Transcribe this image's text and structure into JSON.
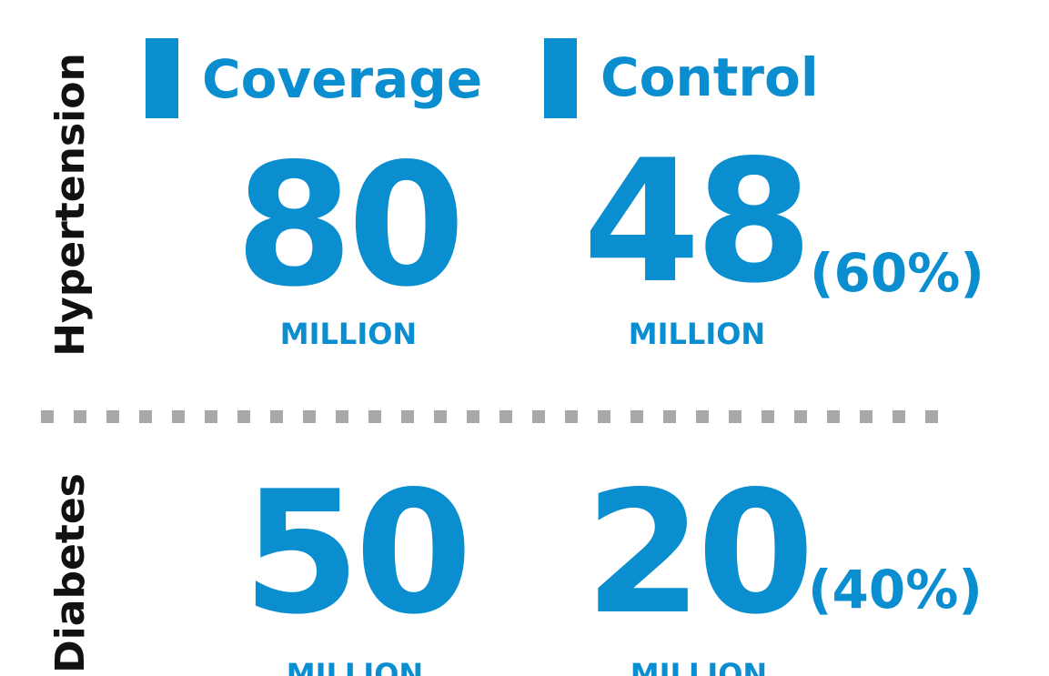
{
  "columns": [
    "Coverage",
    "Control"
  ],
  "rows": [
    {
      "label": "Hypertension",
      "coverage": {
        "value": "80",
        "unit": "MILLION"
      },
      "control": {
        "value": "48",
        "share": "(60%)",
        "unit": "MILLION"
      }
    },
    {
      "label": "Diabetes",
      "coverage": {
        "value": "50",
        "unit": "MILLION"
      },
      "control": {
        "value": "20",
        "share": "(40%)",
        "unit": "MILLION"
      }
    }
  ]
}
